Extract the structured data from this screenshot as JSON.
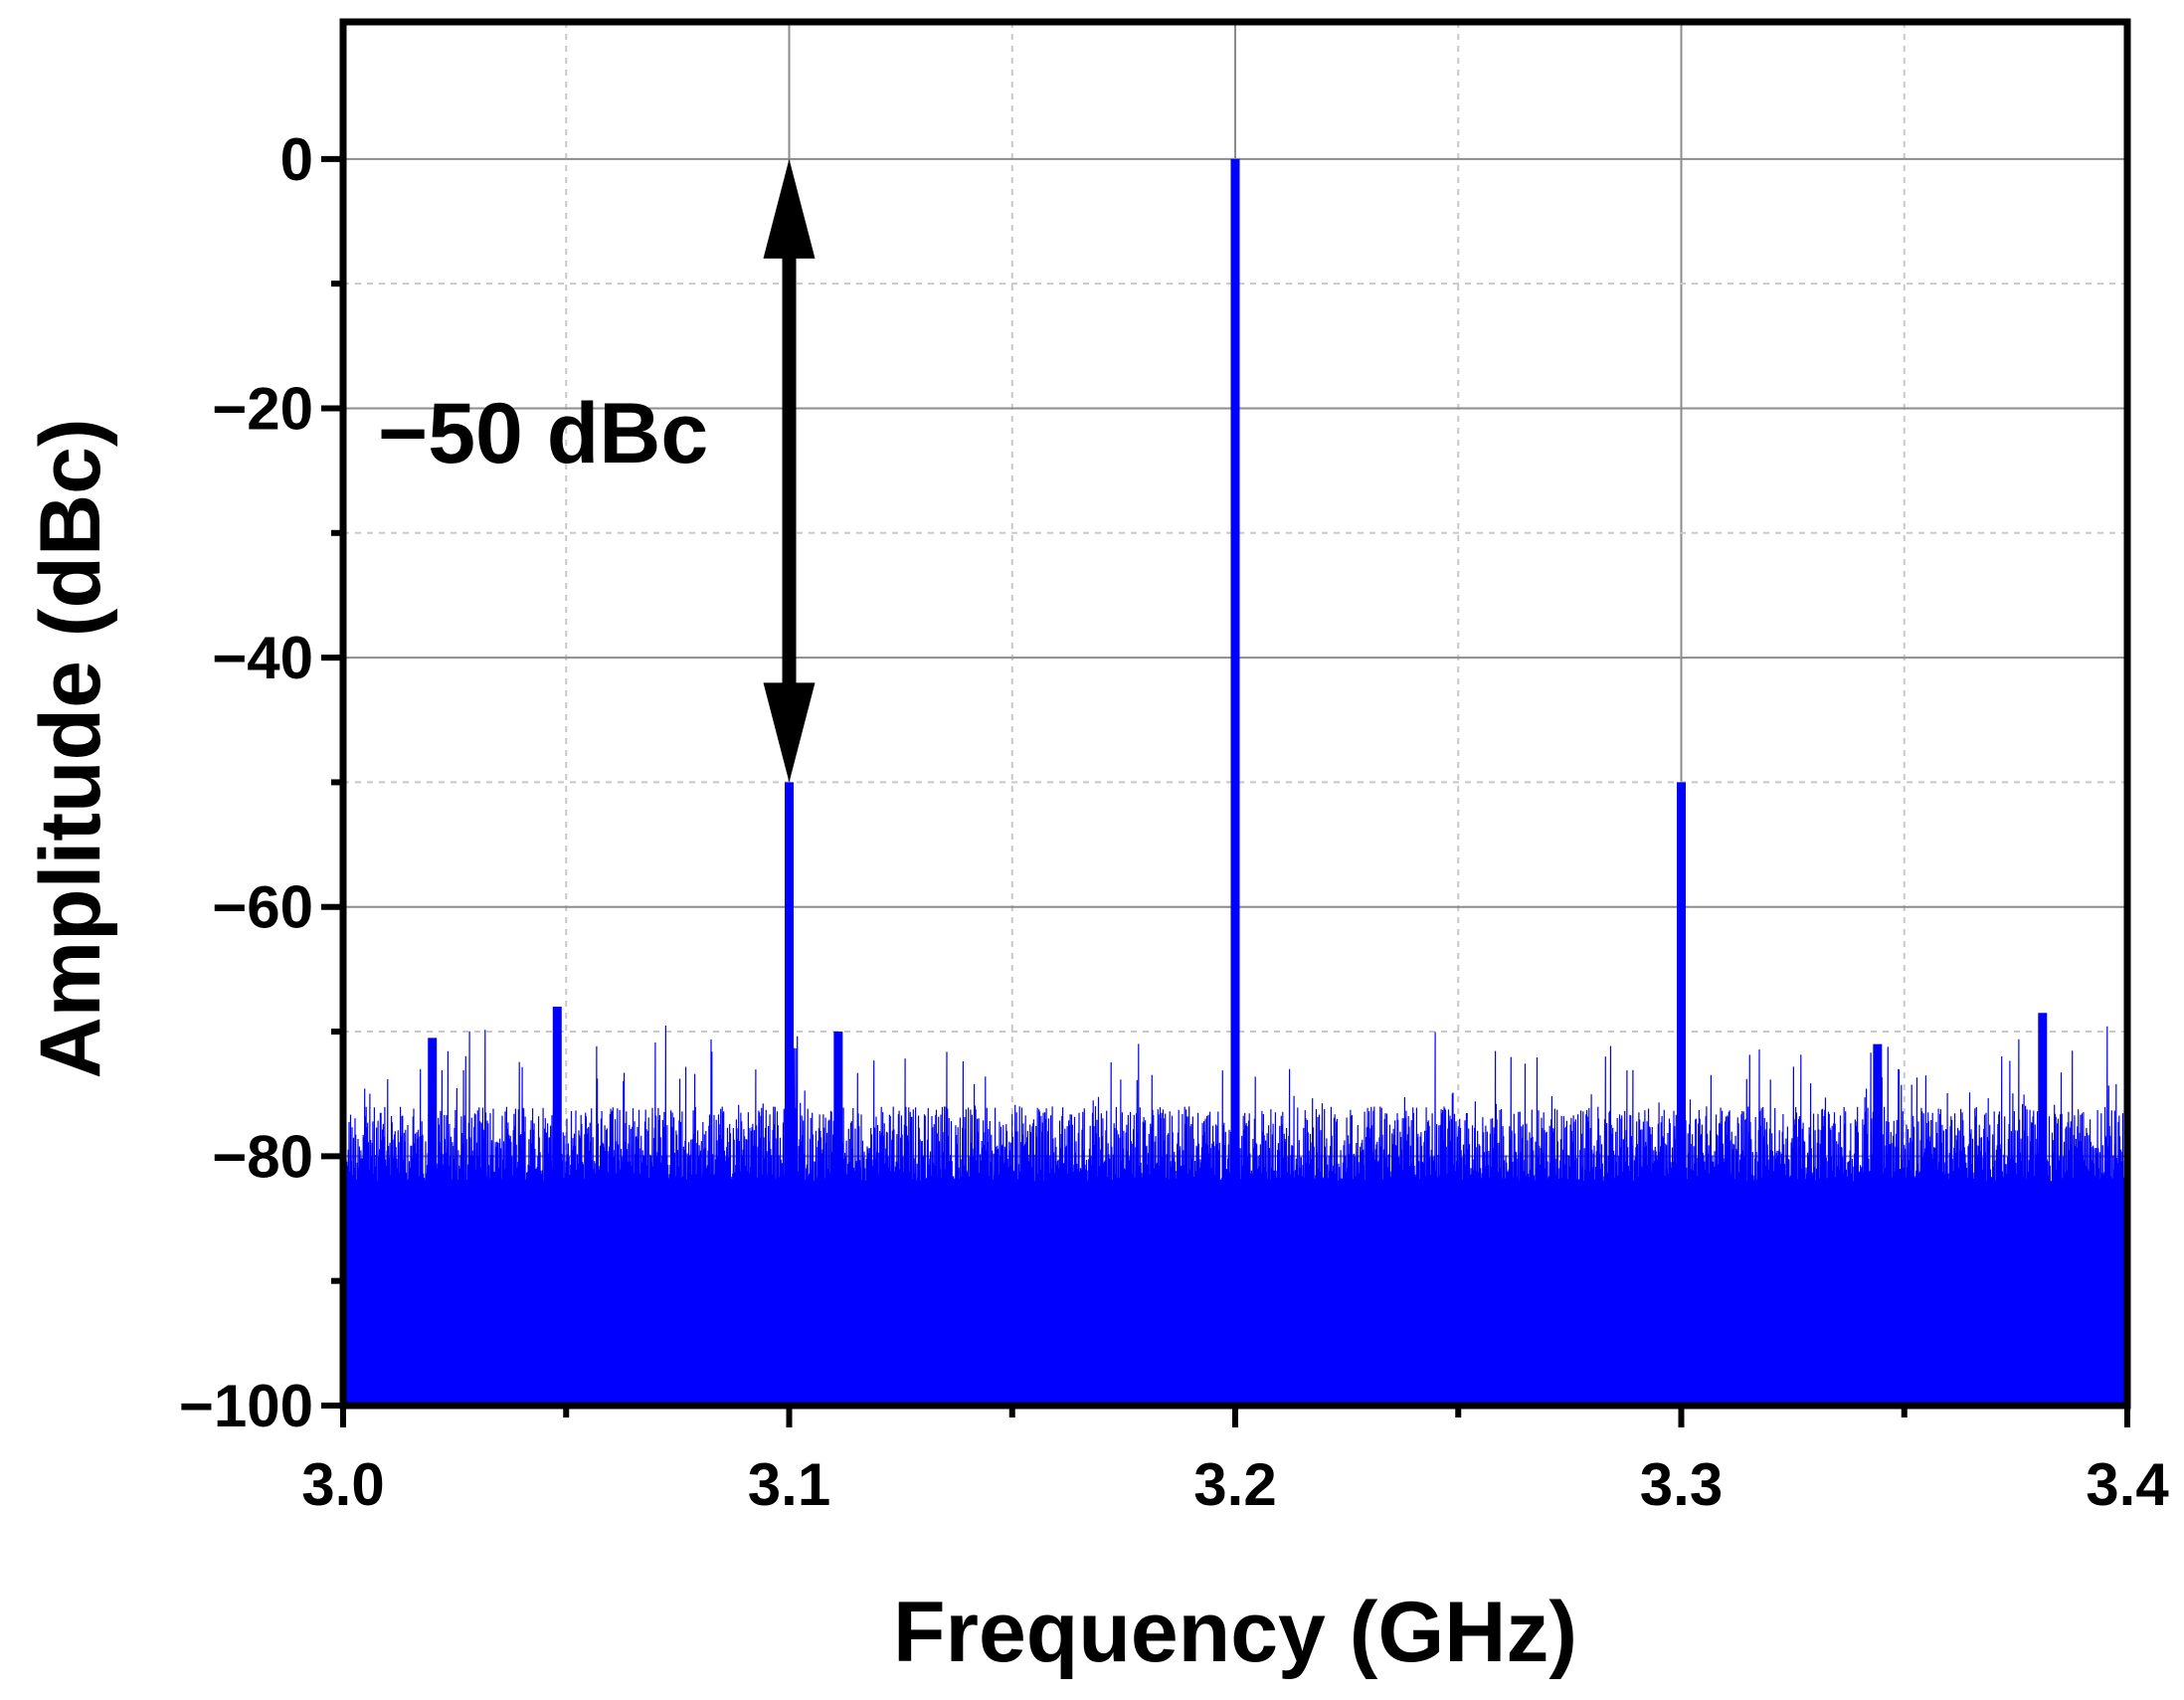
{
  "chart_data": {
    "type": "line",
    "xlabel": "Frequency (GHz)",
    "ylabel": "Amplitude (dBc)",
    "xlim": [
      3.0,
      3.4
    ],
    "ylim": [
      -100,
      11
    ],
    "xticks": [
      3.0,
      3.1,
      3.2,
      3.3,
      3.4
    ],
    "xtick_labels": [
      "3.0",
      "3.1",
      "3.2",
      "3.3",
      "3.4"
    ],
    "yticks": [
      0,
      -20,
      -40,
      -60,
      -80,
      -100
    ],
    "ytick_labels": [
      "0",
      "−20",
      "−40",
      "−60",
      "−80",
      "−100"
    ],
    "grid": true,
    "series_color": "#0000ff",
    "noise_floor_dBc": -100,
    "noise_envelope_dBc": [
      -76,
      -82
    ],
    "peaks": [
      {
        "x": 3.2,
        "y": 0
      },
      {
        "x": 3.1,
        "y": -50
      },
      {
        "x": 3.3,
        "y": -50
      },
      {
        "x": 3.048,
        "y": -68
      },
      {
        "x": 3.381,
        "y": -68.5
      },
      {
        "x": 3.111,
        "y": -70
      },
      {
        "x": 3.02,
        "y": -70.5
      },
      {
        "x": 3.344,
        "y": -71
      }
    ],
    "annotation": {
      "text": "−50 dBc",
      "arrow_from": {
        "x": 3.1,
        "y": 0
      },
      "arrow_to": {
        "x": 3.1,
        "y": -50
      }
    }
  }
}
